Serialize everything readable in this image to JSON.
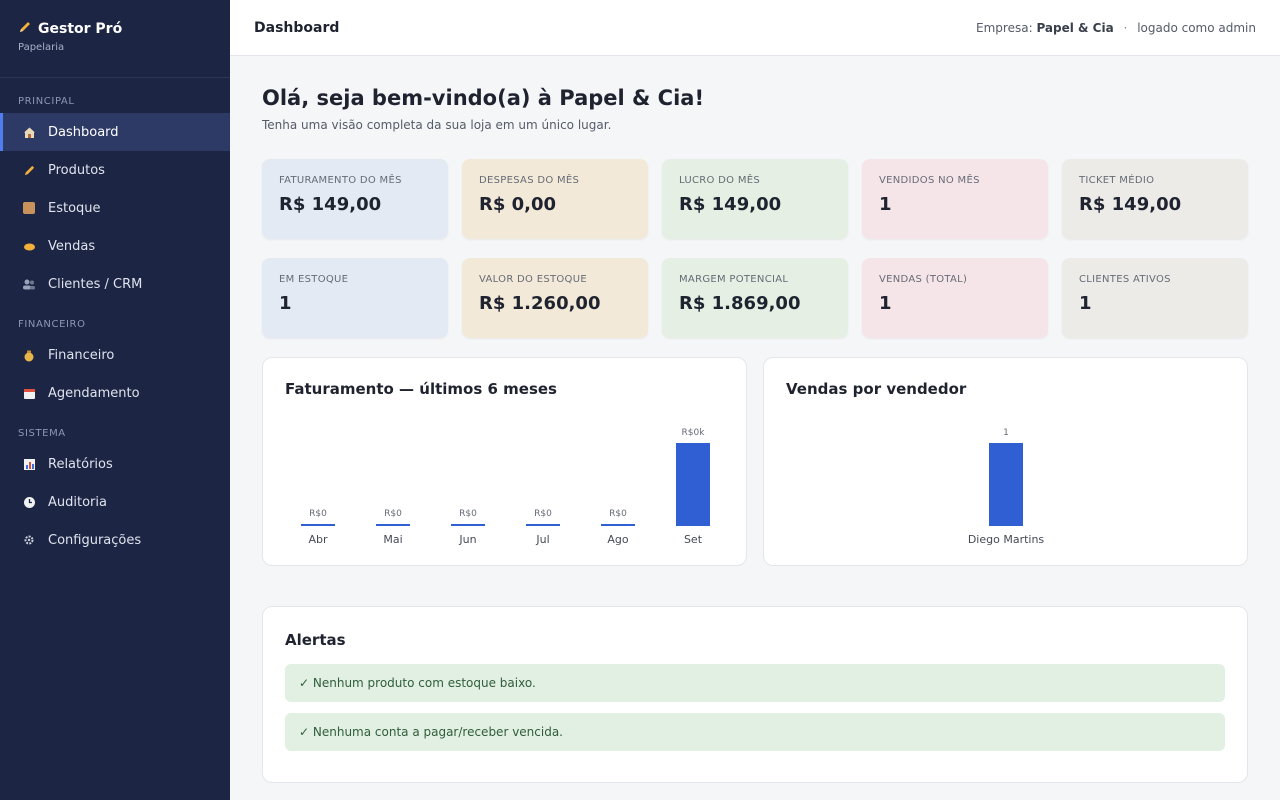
{
  "brand": {
    "title": "Gestor Pró",
    "subtitle": "Papelaria"
  },
  "sidebar": {
    "sections": [
      {
        "label": "PRINCIPAL"
      },
      {
        "label": "FINANCEIRO"
      },
      {
        "label": "SISTEMA"
      }
    ],
    "items": [
      {
        "label": "Dashboard",
        "icon": "home-icon"
      },
      {
        "label": "Produtos",
        "icon": "pencil-icon"
      },
      {
        "label": "Estoque",
        "icon": "box-icon"
      },
      {
        "label": "Vendas",
        "icon": "handshake-icon"
      },
      {
        "label": "Clientes / CRM",
        "icon": "users-icon"
      },
      {
        "label": "Financeiro",
        "icon": "money-bag-icon"
      },
      {
        "label": "Agendamento",
        "icon": "calendar-icon"
      },
      {
        "label": "Relatórios",
        "icon": "bar-chart-icon"
      },
      {
        "label": "Auditoria",
        "icon": "clock-icon"
      },
      {
        "label": "Configurações",
        "icon": "gear-icon"
      }
    ]
  },
  "topbar": {
    "title": "Dashboard",
    "company_prefix": "Empresa:",
    "company_name": "Papel & Cia",
    "separator": "·",
    "logged_in": "logado como admin"
  },
  "welcome": {
    "title": "Olá, seja bem-vindo(a) à Papel & Cia!",
    "subtitle": "Tenha uma visão completa da sua loja em um único lugar."
  },
  "kpis_row1": [
    {
      "label": "FATURAMENTO DO MÊS",
      "value": "R$ 149,00"
    },
    {
      "label": "DESPESAS DO MÊS",
      "value": "R$ 0,00"
    },
    {
      "label": "LUCRO DO MÊS",
      "value": "R$ 149,00"
    },
    {
      "label": "VENDIDOS NO MÊS",
      "value": "1"
    },
    {
      "label": "TICKET MÉDIO",
      "value": "R$ 149,00"
    }
  ],
  "kpis_row2": [
    {
      "label": "EM ESTOQUE",
      "value": "1"
    },
    {
      "label": "VALOR DO ESTOQUE",
      "value": "R$ 1.260,00"
    },
    {
      "label": "MARGEM POTENCIAL",
      "value": "R$ 1.869,00"
    },
    {
      "label": "VENDAS (TOTAL)",
      "value": "1"
    },
    {
      "label": "CLIENTES ATIVOS",
      "value": "1"
    }
  ],
  "colors": {
    "bar": "#2f5fd3",
    "sidebar": "#1c2543",
    "accent": "#4f7df0"
  },
  "chart_revenue_title": "Faturamento — últimos 6 meses",
  "chart_sellers_title": "Vendas por vendedor",
  "chart_data": [
    {
      "type": "bar",
      "title": "Faturamento — últimos 6 meses",
      "categories": [
        "Abr",
        "Mai",
        "Jun",
        "Jul",
        "Ago",
        "Set"
      ],
      "values": [
        0,
        0,
        0,
        0,
        0,
        149
      ],
      "data_labels": [
        "R$0",
        "R$0",
        "R$0",
        "R$0",
        "R$0",
        "R$0k"
      ],
      "xlabel": "",
      "ylabel": "",
      "grid": false
    },
    {
      "type": "bar",
      "title": "Vendas por vendedor",
      "categories": [
        "Diego Martins"
      ],
      "values": [
        1
      ],
      "data_labels": [
        "1"
      ],
      "xlabel": "",
      "ylabel": "",
      "grid": false
    }
  ],
  "alerts": {
    "title": "Alertas",
    "items": [
      "✓ Nenhum produto com estoque baixo.",
      "✓ Nenhuma conta a pagar/receber vencida."
    ]
  }
}
